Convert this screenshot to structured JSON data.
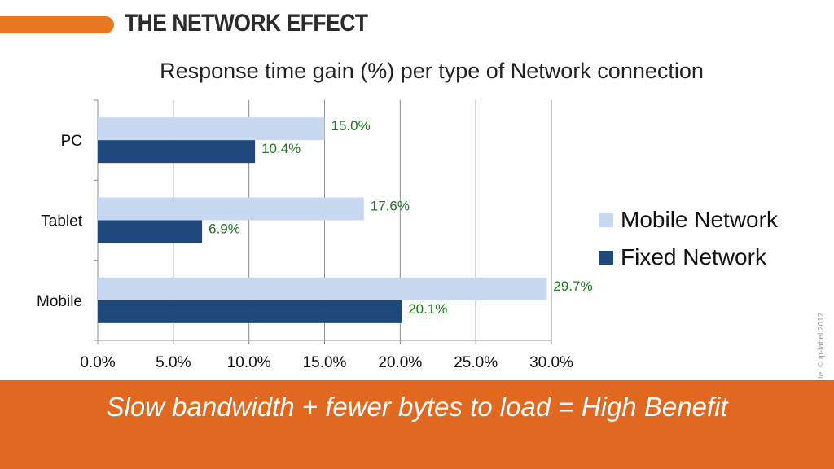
{
  "slide": {
    "title": "THE NETWORK EFFECT",
    "banner_text": "Slow bandwidth + fewer bytes to load = High Benefit",
    "watermark": "te. © ip-label 2012",
    "accent_color": "#e87722",
    "banner_color": "#e06820"
  },
  "chart_data": {
    "type": "bar",
    "orientation": "horizontal",
    "title": "Response time gain (%) per type of Network connection",
    "categories": [
      "PC",
      "Tablet",
      "Mobile"
    ],
    "series": [
      {
        "name": "Mobile Network",
        "values": [
          15.0,
          17.6,
          29.7
        ],
        "labels": [
          "15.0%",
          "17.6%",
          "29.7%"
        ],
        "color": "#c6d9f1"
      },
      {
        "name": "Fixed Network",
        "values": [
          10.4,
          6.9,
          20.1
        ],
        "labels": [
          "10.4%",
          "6.9%",
          "20.1%"
        ],
        "color": "#1f497d"
      }
    ],
    "xlim": [
      0,
      30
    ],
    "xticks": [
      0,
      5,
      10,
      15,
      20,
      25,
      30
    ],
    "xtick_labels": [
      "0.0%",
      "5.0%",
      "10.0%",
      "15.0%",
      "20.0%",
      "25.0%",
      "30.0%"
    ],
    "grid": "vertical",
    "legend_position": "right",
    "data_label_color": "#1a7a1a"
  }
}
